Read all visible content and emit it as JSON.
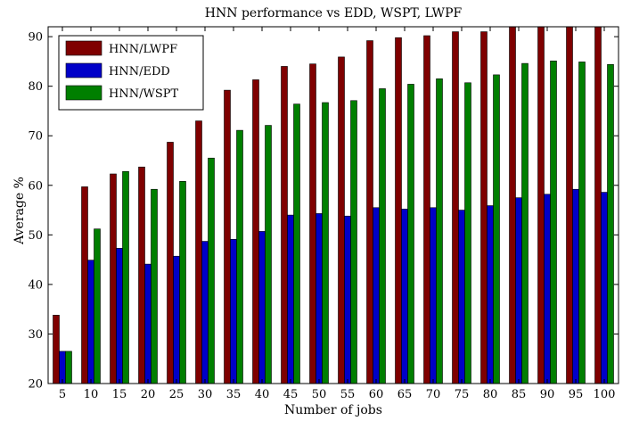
{
  "chart_data": {
    "type": "bar",
    "title": "HNN performance vs EDD, WSPT, LWPF",
    "xlabel": "Number of jobs",
    "ylabel": "Average %",
    "ylim": [
      20,
      92
    ],
    "yticks": [
      20,
      30,
      40,
      50,
      60,
      70,
      80,
      90
    ],
    "grid": false,
    "legend_position": "top-left",
    "categories": [
      "5",
      "10",
      "15",
      "20",
      "25",
      "30",
      "35",
      "40",
      "45",
      "50",
      "55",
      "60",
      "65",
      "70",
      "75",
      "80",
      "85",
      "90",
      "95",
      "100"
    ],
    "series": [
      {
        "name": "HNN/LWPF",
        "color": "#7f0000",
        "values": [
          33.8,
          59.7,
          62.3,
          63.7,
          68.7,
          73.0,
          79.2,
          81.3,
          84.0,
          84.5,
          85.9,
          89.2,
          89.8,
          90.2,
          91.0,
          91.0,
          92.0,
          92.0,
          92.0,
          92.0
        ]
      },
      {
        "name": "HNN/EDD",
        "color": "#0000c8",
        "values": [
          26.5,
          44.9,
          47.3,
          44.1,
          45.7,
          48.7,
          49.1,
          50.7,
          54.0,
          54.3,
          53.8,
          55.5,
          55.2,
          55.5,
          55.0,
          55.9,
          57.5,
          58.2,
          59.2,
          58.6
        ]
      },
      {
        "name": "HNN/WSPT",
        "color": "#007f00",
        "values": [
          26.5,
          51.2,
          62.8,
          59.2,
          60.8,
          65.5,
          71.1,
          72.1,
          76.4,
          76.7,
          77.1,
          79.5,
          80.4,
          81.5,
          80.7,
          82.3,
          84.6,
          85.1,
          84.9,
          84.4
        ]
      }
    ]
  }
}
